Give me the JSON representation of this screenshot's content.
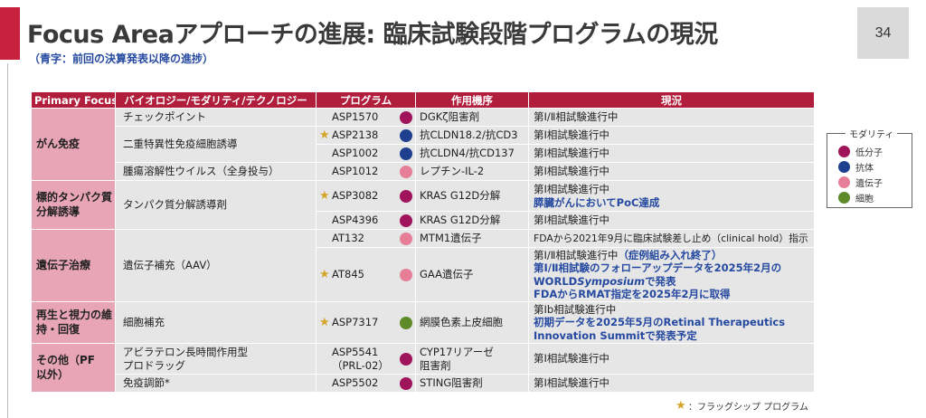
{
  "header": {
    "title": "Focus Areaアプローチの進展: 臨床試験段階プログラムの現況",
    "subtitle": "（青字：前回の決算発表以降の進捗）",
    "page_number": "34"
  },
  "colors": {
    "accent": "#c8213f",
    "header_bg": "#b11e3c",
    "focus_bg": "#e8a5b5",
    "row_bg": "#e6e6e6",
    "progress_text": "#2549a0",
    "star": "#d4a52a"
  },
  "modalities": {
    "small_molecule": "#a0145c",
    "antibody": "#1f3f8f",
    "gene": "#e67e97",
    "cell": "#5f8a2a"
  },
  "table": {
    "headers": [
      "Primary Focus",
      "バイオロジー/モダリティ/テクノロジー",
      "プログラム",
      "作用機序",
      "現況"
    ],
    "groups": {
      "g1": "がん免疫",
      "g2": "標的タンパク質分解誘導",
      "g3": "遺伝子治療",
      "g4": "再生と視力の維持・回復",
      "g5": "その他（PF以外）"
    },
    "biology": {
      "b1": "チェックポイント",
      "b2": "二重特異性免疫細胞誘導",
      "b3": "腫瘍溶解性ウイルス（全身投与）",
      "b4": "タンパク質分解誘導剤",
      "b5": "遺伝子補充（AAV）",
      "b6": "細胞補充",
      "b7a": "アビラテロン長時間作用型",
      "b7b": "プロドラッグ",
      "b8": "免疫調節*"
    },
    "rows": {
      "r1": {
        "program": "ASP1570",
        "mechanism": "DGKζ阻害剤",
        "status": "第Ⅰ/Ⅱ相試験進行中"
      },
      "r2": {
        "program": "ASP2138",
        "mechanism": "抗CLDN18.2/抗CD3",
        "status": "第Ⅰ相試験進行中"
      },
      "r3": {
        "program": "ASP1002",
        "mechanism": "抗CLDN4/抗CD137",
        "status": "第Ⅰ相試験進行中"
      },
      "r4": {
        "program": "ASP1012",
        "mechanism": "レプチン-IL-2",
        "status": "第Ⅰ相試験進行中"
      },
      "r5": {
        "program": "ASP3082",
        "mechanism": "KRAS G12D分解",
        "status": "第Ⅰ相試験進行中",
        "progress": "膵臓がんにおいてPoC達成"
      },
      "r6": {
        "program": "ASP4396",
        "mechanism": "KRAS G12D分解",
        "status": "第Ⅰ相試験進行中"
      },
      "r7": {
        "program": "AT132",
        "mechanism": "MTM1遺伝子",
        "status": "FDAから2021年9月に臨床試験差し止め（clinical hold）指示"
      },
      "r8": {
        "program": "AT845",
        "mechanism": "GAA遺伝子",
        "status_a": "第Ⅰ/Ⅱ相試験進行中",
        "status_b": "（症例組み入れ終了）",
        "progress_1": "第Ⅰ/Ⅱ相試験のフォローアップデータを2025年2月の",
        "progress_2a": "WORLD",
        "progress_2b": "Symposium",
        "progress_2c": "で発表",
        "progress_3": "FDAからRMAT指定を2025年2月に取得"
      },
      "r9": {
        "program": "ASP7317",
        "mechanism": "網膜色素上皮細胞",
        "status": "第Ⅰb相試験進行中",
        "progress_1": "初期データを2025年5月のRetinal Therapeutics",
        "progress_2": "Innovation Summitで発表予定"
      },
      "r10": {
        "program_a": "ASP5541",
        "program_b": "（PRL-02）",
        "mechanism_a": "CYP17リアーゼ",
        "mechanism_b": "阻害剤",
        "status": "第Ⅰ相試験進行中"
      },
      "r11": {
        "program": "ASP5502",
        "mechanism": "STING阻害剤",
        "status": "第Ⅰ相試験進行中"
      }
    }
  },
  "legend": {
    "title": "モダリティ",
    "items": [
      "低分子",
      "抗体",
      "遺伝子",
      "細胞"
    ]
  },
  "footnote": "：フラッグシップ プログラム"
}
